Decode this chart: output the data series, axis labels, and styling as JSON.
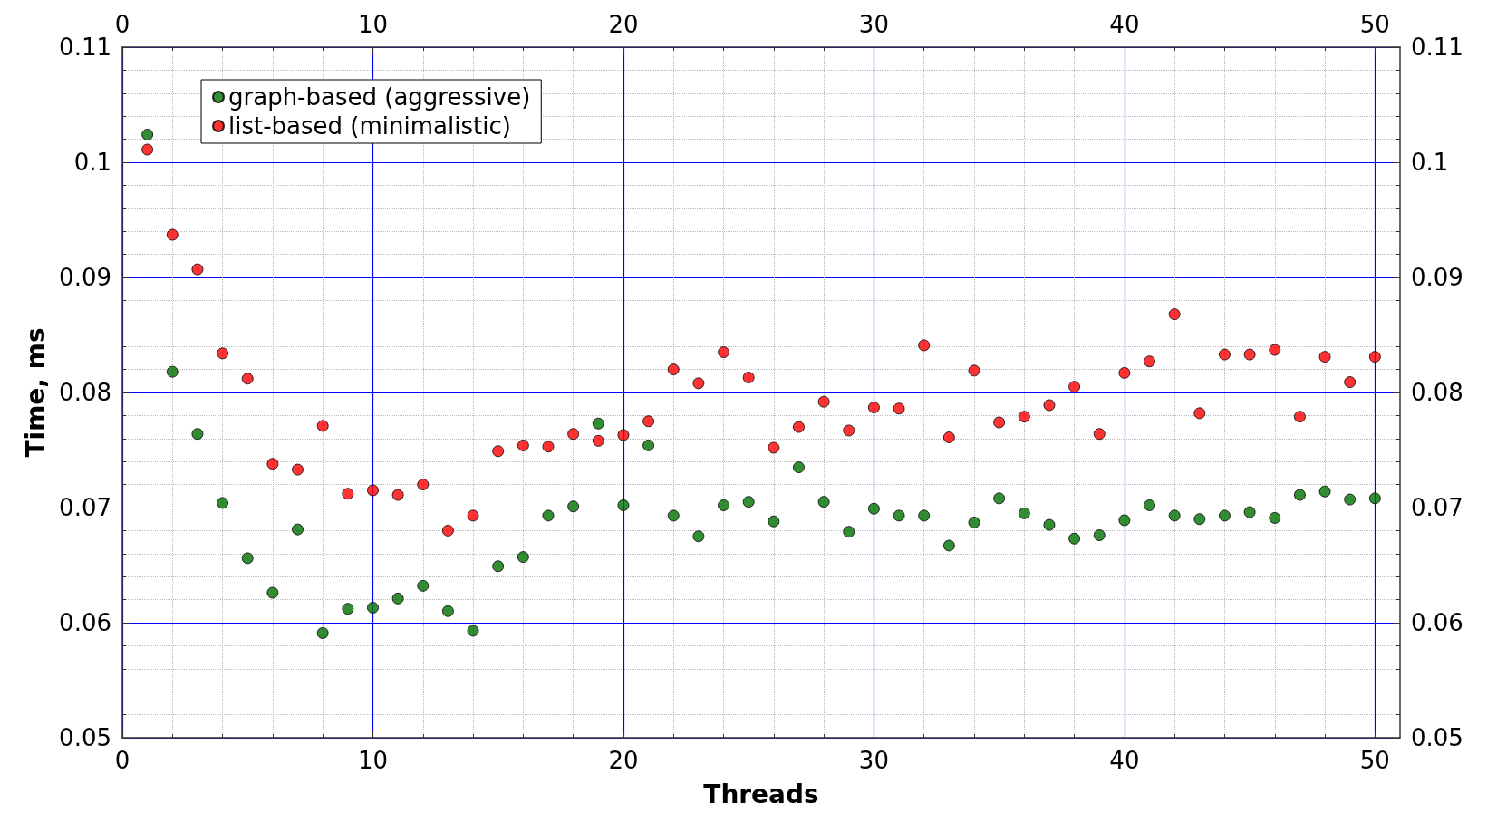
{
  "chart_data": {
    "type": "scatter",
    "xlabel": "Threads",
    "ylabel": "Time, ms",
    "x": [
      1,
      2,
      3,
      4,
      5,
      6,
      7,
      8,
      9,
      10,
      11,
      12,
      13,
      14,
      15,
      16,
      17,
      18,
      19,
      20,
      21,
      22,
      23,
      24,
      25,
      26,
      27,
      28,
      29,
      30,
      31,
      32,
      33,
      34,
      35,
      36,
      37,
      38,
      39,
      40,
      41,
      42,
      43,
      44,
      45,
      46,
      47,
      48,
      49,
      50
    ],
    "series": [
      {
        "name": "graph-based (aggressive)",
        "color": "#007000",
        "values": [
          0.1024,
          0.0818,
          0.0764,
          0.0704,
          0.0656,
          0.0626,
          0.0681,
          0.0591,
          0.0612,
          0.0613,
          0.0621,
          0.0632,
          0.061,
          0.0593,
          0.0649,
          0.0657,
          0.0693,
          0.0701,
          0.0773,
          0.0702,
          0.0754,
          0.0693,
          0.0675,
          0.0702,
          0.0705,
          0.0688,
          0.0735,
          0.0705,
          0.0679,
          0.0699,
          0.0693,
          0.0693,
          0.0667,
          0.0687,
          0.0708,
          0.0695,
          0.0685,
          0.0673,
          0.0676,
          0.0689,
          0.0702,
          0.0693,
          0.069,
          0.0693,
          0.0696,
          0.0691,
          0.0711,
          0.0714,
          0.0707,
          0.0708
        ]
      },
      {
        "name": "list-based (minimalistic)",
        "color": "#ff0000",
        "values": [
          0.1011,
          0.0937,
          0.0907,
          0.0834,
          0.0812,
          0.0738,
          0.0733,
          0.0771,
          0.0712,
          0.0715,
          0.0711,
          0.072,
          0.068,
          0.0693,
          0.0749,
          0.0754,
          0.0753,
          0.0764,
          0.0758,
          0.0763,
          0.0775,
          0.082,
          0.0808,
          0.0835,
          0.0813,
          0.0752,
          0.077,
          0.0792,
          0.0767,
          0.0787,
          0.0786,
          0.0841,
          0.0761,
          0.0819,
          0.0774,
          0.0779,
          0.0789,
          0.0805,
          0.0764,
          0.0817,
          0.0827,
          0.0868,
          0.0782,
          0.0833,
          0.0833,
          0.0837,
          0.0779,
          0.0831,
          0.0809,
          0.0831
        ]
      }
    ],
    "xlim": [
      0,
      51
    ],
    "xticks": [
      0,
      10,
      20,
      30,
      40,
      50
    ],
    "x2lim": [
      0,
      51
    ],
    "x2ticks": [
      0,
      10,
      20,
      30,
      40,
      50
    ],
    "ylim": [
      0.05,
      0.11
    ],
    "yticks": [
      0.05,
      0.06,
      0.07,
      0.08,
      0.09,
      0.1,
      0.11
    ],
    "y2lim": [
      0.05,
      0.11
    ],
    "y2ticks": [
      0.05,
      0.06,
      0.07,
      0.08,
      0.09,
      0.1,
      0.11
    ],
    "grid": true,
    "legend": "top left",
    "marker": "circle"
  }
}
